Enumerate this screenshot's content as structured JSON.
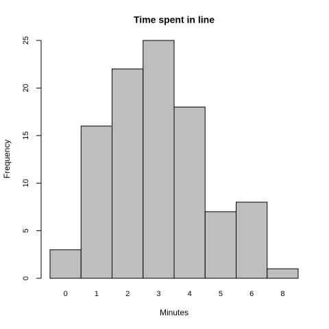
{
  "chart_data": {
    "type": "bar",
    "title": "Time spent in line",
    "x_label": "Minutes",
    "y_label": "Frequency",
    "categories": [
      "0",
      "1",
      "2",
      "3",
      "4",
      "5",
      "6",
      "8"
    ],
    "values": [
      3,
      16,
      22,
      25,
      18,
      7,
      8,
      1
    ],
    "color": "#bebebe",
    "ylim": [
      0,
      25
    ],
    "yticks": [
      0,
      5,
      10,
      15,
      20,
      25
    ],
    "grid": false
  }
}
